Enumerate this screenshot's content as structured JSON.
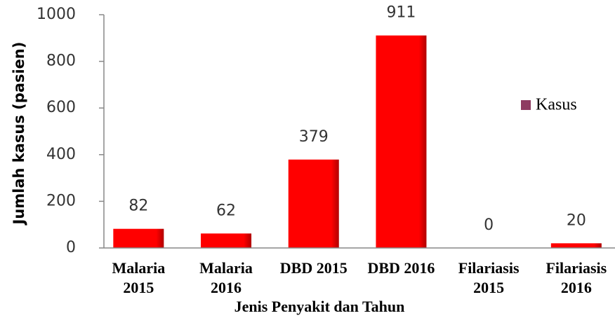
{
  "chart_data": {
    "type": "bar",
    "categories": [
      [
        "Malaria",
        "2015"
      ],
      [
        "Malaria",
        "2016"
      ],
      [
        "DBD 2015"
      ],
      [
        "DBD 2016"
      ],
      [
        "Filariasis",
        "2015"
      ],
      [
        "Filariasis",
        "2016"
      ]
    ],
    "series": [
      {
        "name": "Kasus",
        "color": "#ff0000",
        "legend_color": "#8e3b61",
        "values": [
          82,
          62,
          379,
          911,
          0,
          20
        ]
      }
    ],
    "x_label": "Jenis Penyakit dan Tahun",
    "y_label": "Jumlah kasus (pasien)",
    "ylim": [
      0,
      1000
    ],
    "yticks": [
      0,
      200,
      400,
      600,
      800,
      1000
    ],
    "grid": false,
    "legend": "right"
  }
}
